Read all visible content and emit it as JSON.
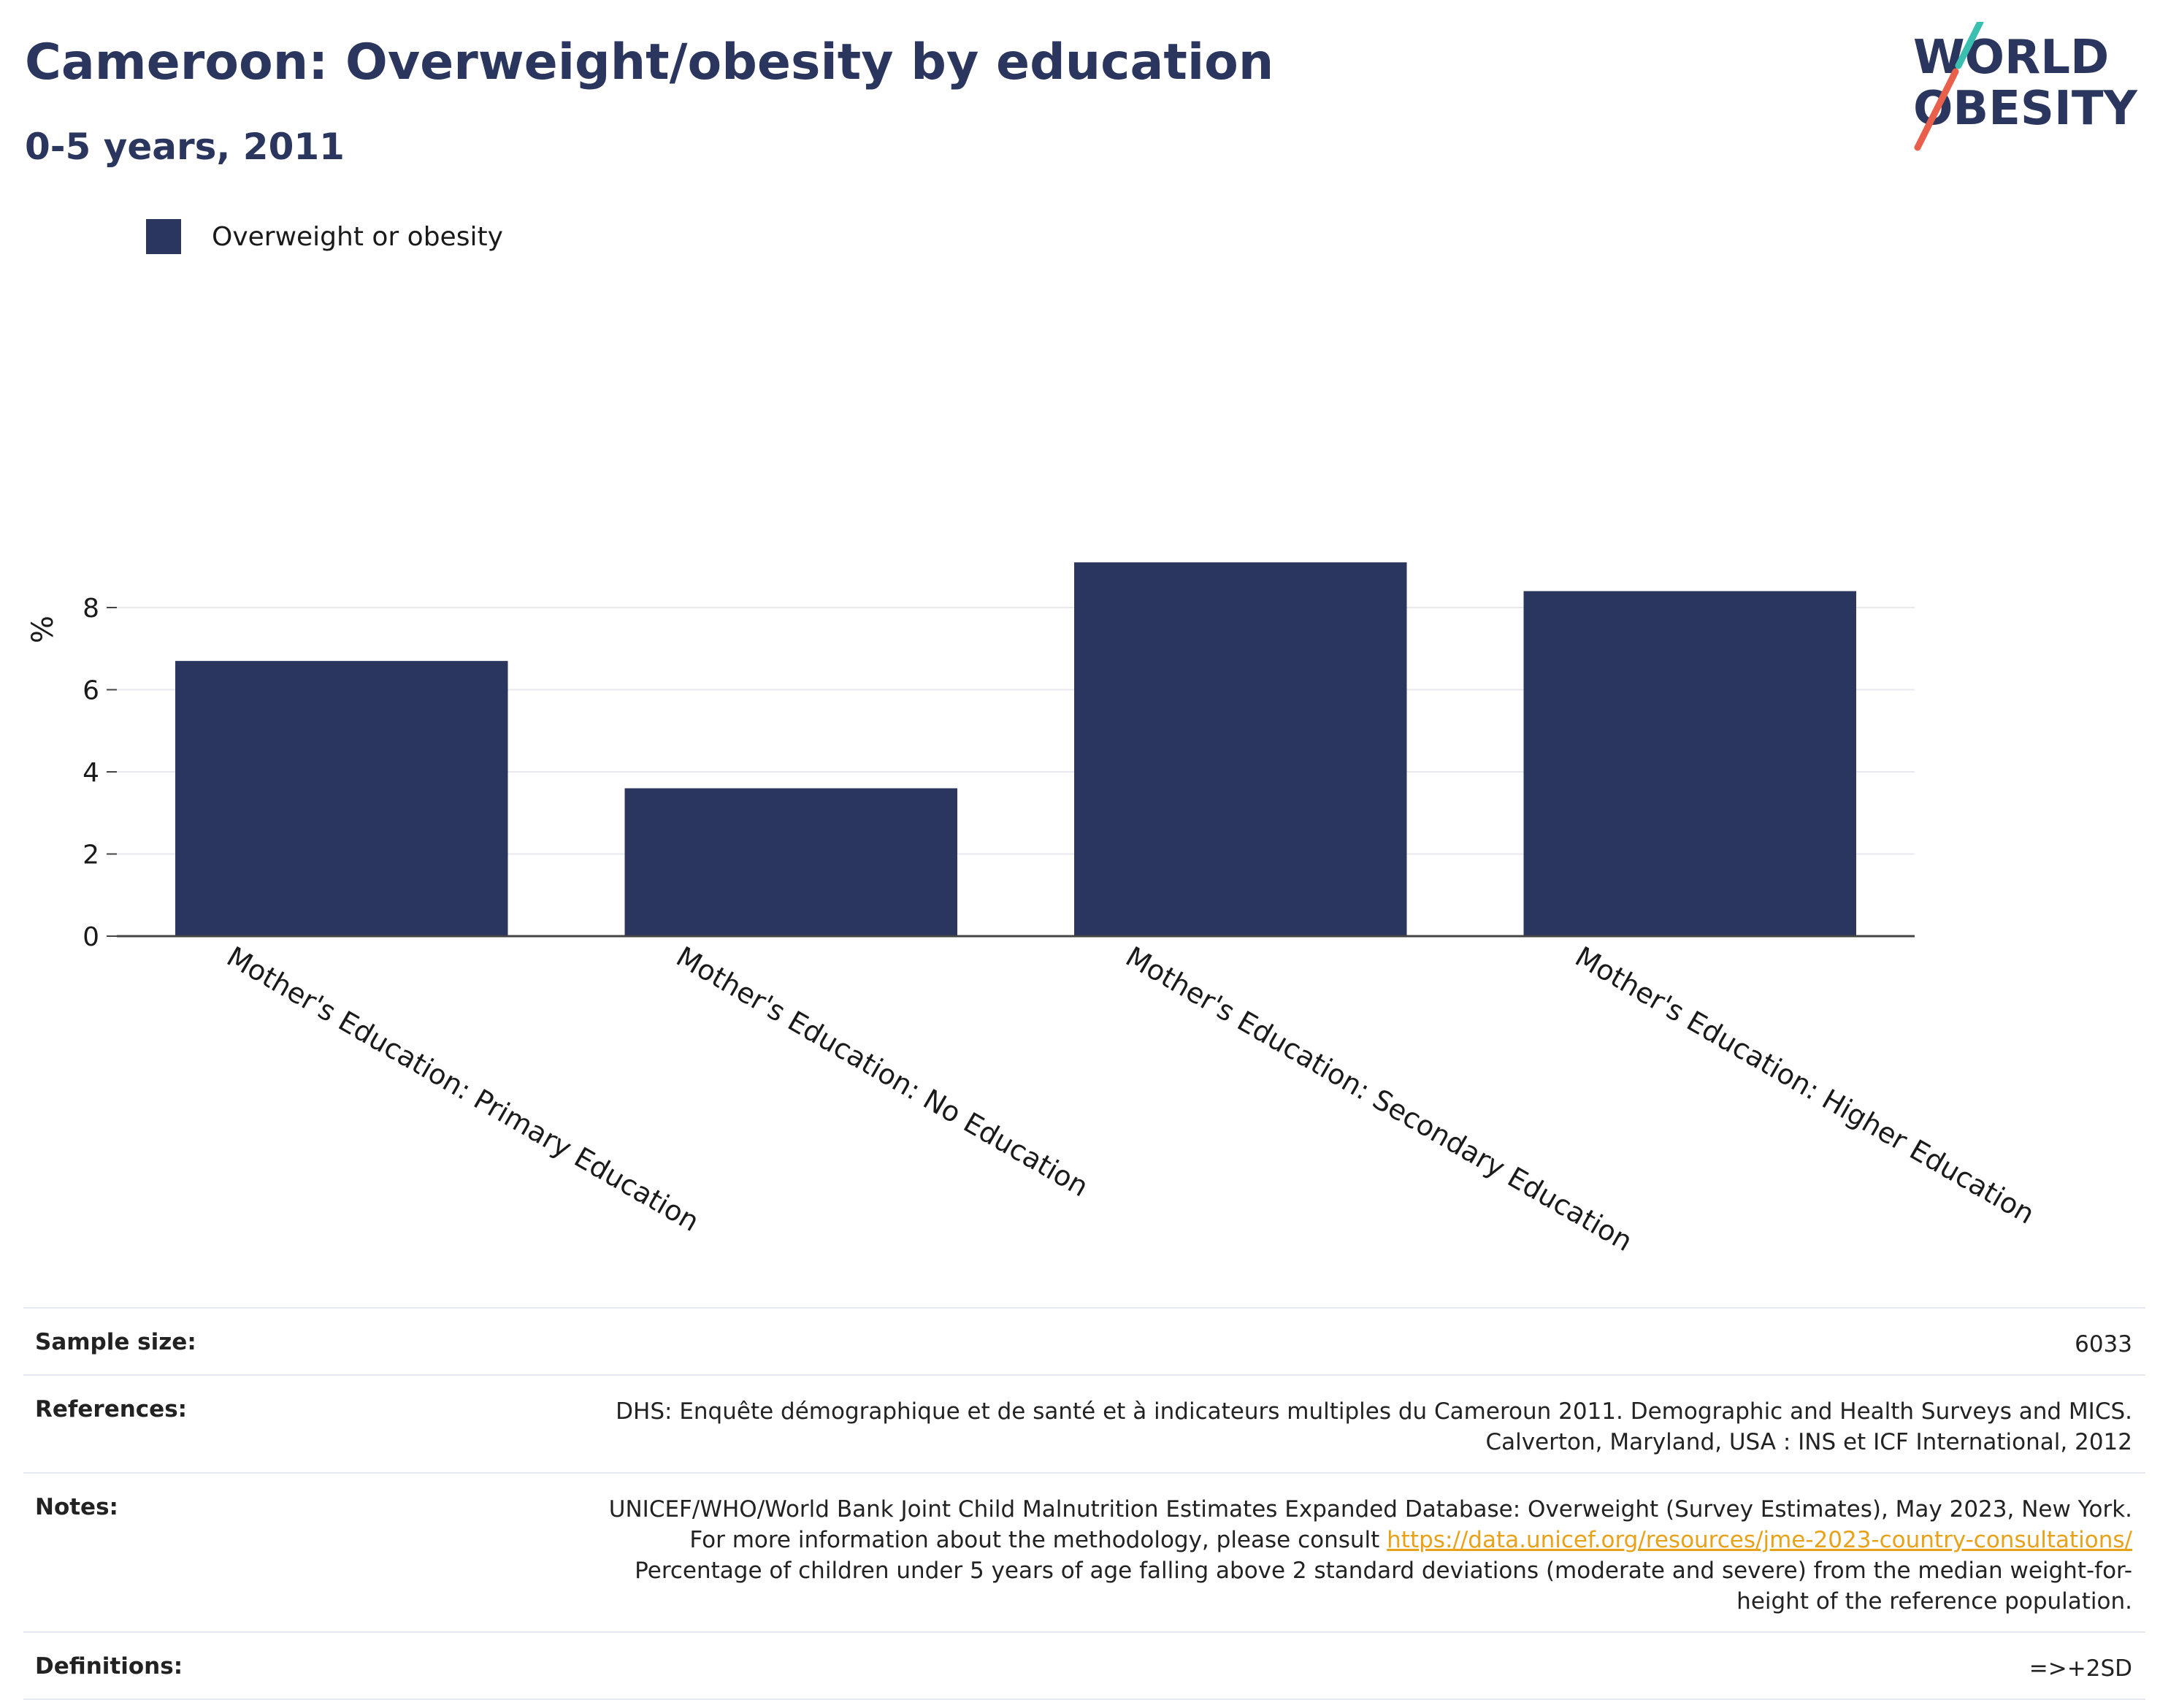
{
  "header": {
    "title": "Cameroon: Overweight/obesity by education",
    "subtitle": "0-5 years, 2011"
  },
  "logo": {
    "line1": "WORLD",
    "line2": "OBESITY",
    "colors": {
      "text": "#2b365f",
      "slash_top": "#3bbfb0",
      "slash_bottom": "#e8604c"
    }
  },
  "colors": {
    "bar": "#2b365f",
    "grid": "#e8e8ee",
    "axis": "#444444"
  },
  "chart_data": {
    "type": "bar",
    "categories": [
      "Mother's Education: Primary Education",
      "Mother's Education: No Education",
      "Mother's Education: Secondary Education",
      "Mother's Education: Higher Education"
    ],
    "series": [
      {
        "name": "Overweight or obesity",
        "values": [
          6.7,
          3.6,
          9.1,
          8.4
        ]
      }
    ],
    "ylabel": "%",
    "xlabel": "",
    "ylim": [
      0,
      9.6
    ],
    "yticks": [
      0,
      2,
      4,
      6,
      8
    ],
    "grid": true,
    "legend_position": "top-left"
  },
  "info": {
    "sample_size_label": "Sample size:",
    "sample_size_value": "6033",
    "references_label": "References:",
    "references_value": "DHS: Enquête démographique et de santé et à indicateurs multiples du Cameroun 2011. Demographic and Health Surveys and MICS. Calverton, Maryland, USA : INS et ICF International, 2012",
    "notes_label": "Notes:",
    "notes_text_1": "UNICEF/WHO/World Bank Joint Child Malnutrition Estimates Expanded Database: Overweight (Survey Estimates), May 2023, New York. For more information about the methodology, please consult ",
    "notes_link": "https://data.unicef.org/resources/jme-2023-country-consultations/",
    "notes_text_2": " Percentage of children under 5 years of age falling above 2 standard deviations (moderate and severe) from the median weight-for-height of the reference population.",
    "definitions_label": "Definitions:",
    "definitions_value": "=>+2SD"
  }
}
